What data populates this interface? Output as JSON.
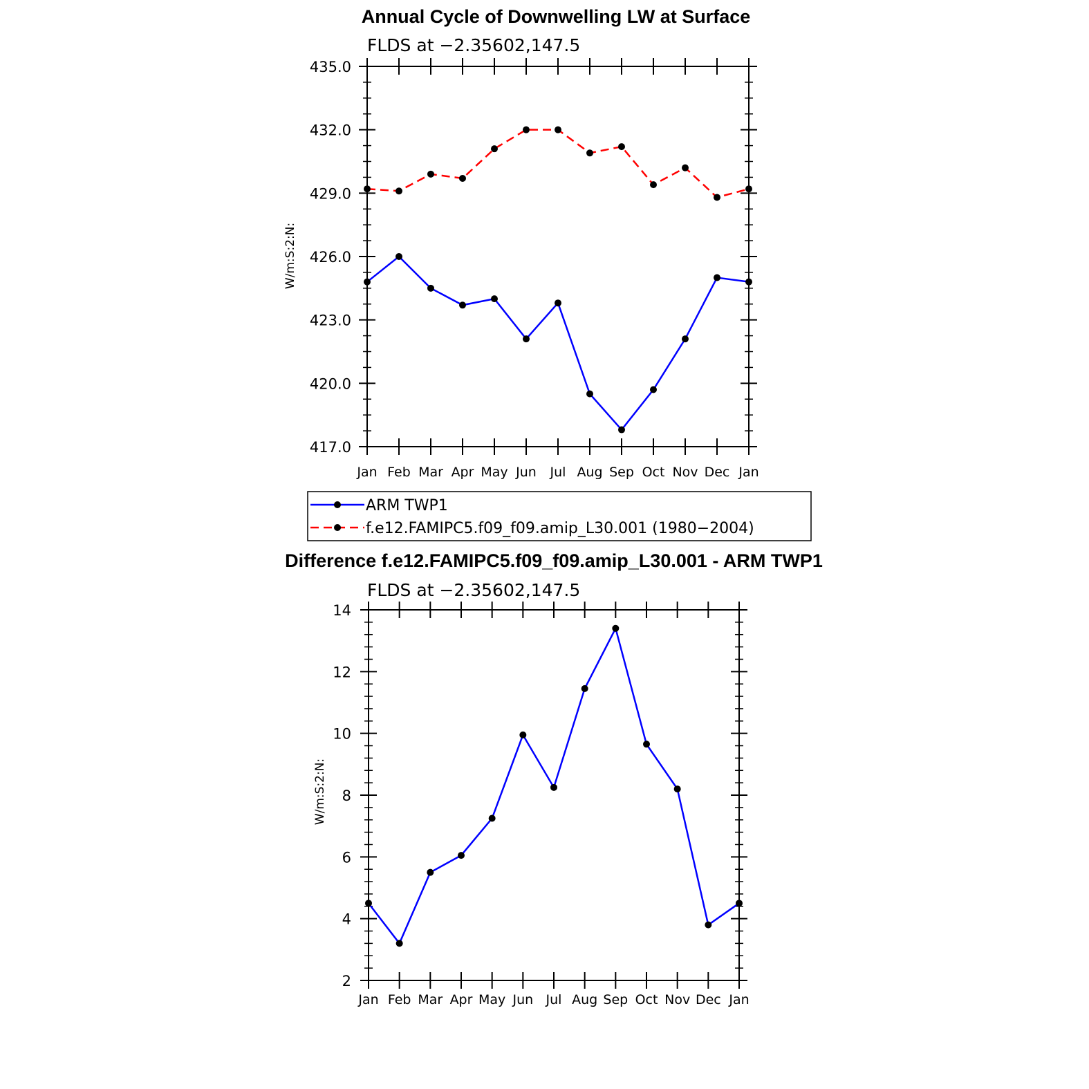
{
  "chart_data": [
    {
      "type": "line",
      "title": "Annual Cycle of Downwelling LW at Surface",
      "subtitle": "FLDS at −2.35602,147.5",
      "xlabel": "",
      "ylabel": "W/m:S:2:N:",
      "categories": [
        "Jan",
        "Feb",
        "Mar",
        "Apr",
        "May",
        "Jun",
        "Jul",
        "Aug",
        "Sep",
        "Oct",
        "Nov",
        "Dec",
        "Jan"
      ],
      "ylim": [
        417.0,
        435.0
      ],
      "yticks": [
        "417.0",
        "420.0",
        "423.0",
        "426.0",
        "429.0",
        "432.0",
        "435.0"
      ],
      "grid": false,
      "legend_position": "bottom",
      "series": [
        {
          "name": "ARM TWP1",
          "color": "#0000ff",
          "dash": "solid",
          "values": [
            424.8,
            426.0,
            424.5,
            423.7,
            424.0,
            422.1,
            423.8,
            419.5,
            417.8,
            419.7,
            422.1,
            425.0,
            424.8
          ]
        },
        {
          "name": "f.e12.FAMIPC5.f09_f09.amip_L30.001 (1980−2004)",
          "color": "#ff0000",
          "dash": "dashed",
          "values": [
            429.2,
            429.1,
            429.9,
            429.7,
            431.1,
            432.0,
            432.0,
            430.9,
            431.2,
            429.4,
            430.2,
            428.8,
            429.2
          ]
        }
      ]
    },
    {
      "type": "line",
      "title": "Difference f.e12.FAMIPC5.f09_f09.amip_L30.001 - ARM TWP1",
      "subtitle": "FLDS at −2.35602,147.5",
      "xlabel": "",
      "ylabel": "W/m:S:2:N:",
      "categories": [
        "Jan",
        "Feb",
        "Mar",
        "Apr",
        "May",
        "Jun",
        "Jul",
        "Aug",
        "Sep",
        "Oct",
        "Nov",
        "Dec",
        "Jan"
      ],
      "ylim": [
        2,
        14
      ],
      "yticks": [
        "2",
        "4",
        "6",
        "8",
        "10",
        "12",
        "14"
      ],
      "grid": false,
      "series": [
        {
          "color": "#0000ff",
          "dash": "solid",
          "values": [
            4.5,
            3.2,
            5.5,
            6.05,
            7.25,
            9.95,
            8.25,
            11.45,
            13.4,
            9.65,
            8.2,
            3.8,
            4.5
          ]
        }
      ]
    }
  ]
}
